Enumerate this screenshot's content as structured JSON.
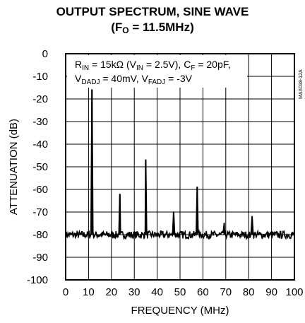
{
  "chart_data": {
    "type": "line",
    "title_line1": "OUTPUT SPECTRUM, SINE WAVE",
    "title_line2_pre": "(F",
    "title_line2_sub": "O",
    "title_line2_post": " = 11.5MHz)",
    "xlabel": "FREQUENCY (MHz)",
    "ylabel": "ATTENUATION (dB)",
    "xlim": [
      0,
      100
    ],
    "ylim": [
      -100,
      0
    ],
    "x_ticks": [
      "0",
      "10",
      "20",
      "30",
      "40",
      "50",
      "60",
      "70",
      "80",
      "90",
      "100"
    ],
    "y_ticks": [
      "0",
      "-10",
      "-20",
      "-30",
      "-40",
      "-50",
      "-60",
      "-70",
      "-80",
      "-90",
      "-100"
    ],
    "grid": true,
    "annotation": {
      "line1": [
        {
          "t": "R"
        },
        {
          "t": "IN",
          "sub": true
        },
        {
          "t": " = 15kΩ (V"
        },
        {
          "t": "IN",
          "sub": true
        },
        {
          "t": " = 2.5V), C"
        },
        {
          "t": "F",
          "sub": true
        },
        {
          "t": " = 20pF,"
        }
      ],
      "line2": [
        {
          "t": "V"
        },
        {
          "t": "DADJ",
          "sub": true
        },
        {
          "t": " = 40mV, V"
        },
        {
          "t": "FADJ",
          "sub": true
        },
        {
          "t": " = -3V"
        }
      ]
    },
    "side_id": "MAX038-12A",
    "noise_floor_db": -80,
    "series": [
      {
        "peaks": [
          {
            "x": 11.5,
            "y": -16
          },
          {
            "x": 23.7,
            "y": -62
          },
          {
            "x": 35.0,
            "y": -47
          },
          {
            "x": 47.2,
            "y": -70
          },
          {
            "x": 57.5,
            "y": -59
          },
          {
            "x": 69.3,
            "y": -75
          },
          {
            "x": 81.5,
            "y": -72
          }
        ]
      }
    ]
  }
}
